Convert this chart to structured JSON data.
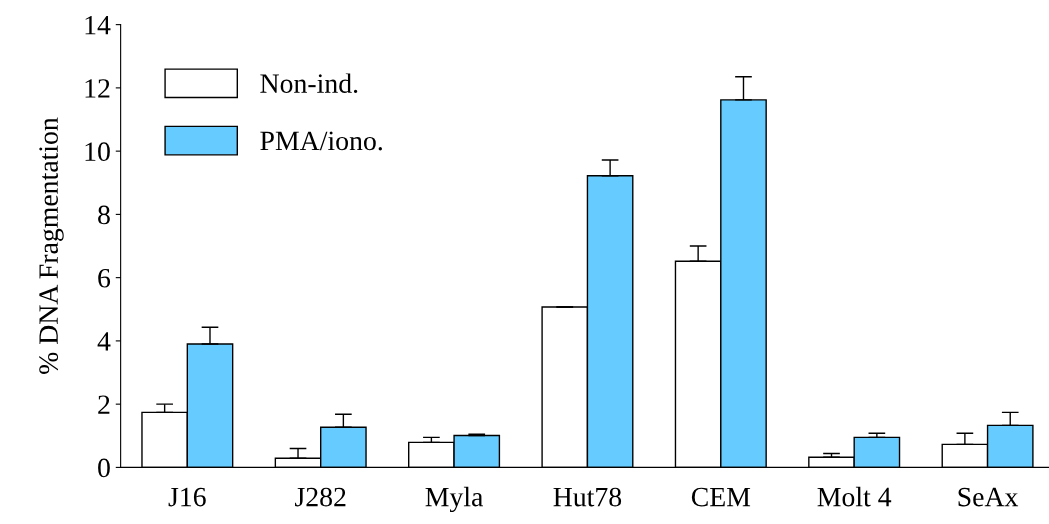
{
  "chart_data": {
    "type": "bar",
    "ylabel": "% DNA Fragmentation",
    "categories": [
      "J16",
      "J282",
      "Myla",
      "Hut78",
      "CEM",
      "Molt 4",
      "SeAx"
    ],
    "series": [
      {
        "name": "Non-ind.",
        "color": "#ffffff",
        "values": [
          1.74,
          0.29,
          0.79,
          5.07,
          6.52,
          0.32,
          0.73
        ],
        "errors": [
          [
            1.74,
            2.0
          ],
          [
            0.29,
            0.6
          ],
          [
            0.79,
            0.95
          ],
          [
            5.07,
            5.07
          ],
          [
            6.52,
            7.0
          ],
          [
            0.32,
            0.44
          ],
          [
            0.73,
            1.08
          ]
        ]
      },
      {
        "name": "PMA/iono.",
        "color": "#66ccff",
        "values": [
          3.9,
          1.27,
          1.01,
          9.22,
          11.62,
          0.95,
          1.33
        ],
        "errors": [
          [
            3.9,
            4.43
          ],
          [
            1.27,
            1.68
          ],
          [
            1.01,
            1.05
          ],
          [
            9.22,
            9.72
          ],
          [
            11.62,
            12.35
          ],
          [
            0.95,
            1.08
          ],
          [
            1.33,
            1.74
          ]
        ]
      }
    ],
    "ylim": [
      0,
      14
    ],
    "yticks": [
      0,
      2,
      4,
      6,
      8,
      10,
      12,
      14
    ],
    "grid": false,
    "legend": "top left"
  }
}
